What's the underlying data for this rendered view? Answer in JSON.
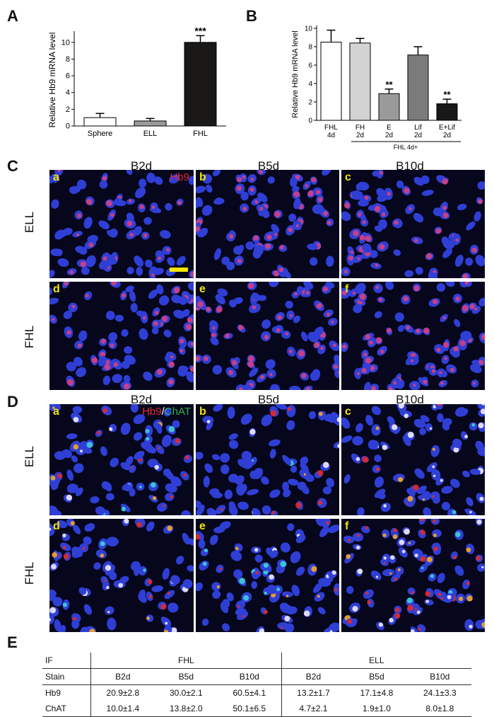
{
  "panels": {
    "A": "A",
    "B": "B",
    "C": "C",
    "D": "D",
    "E": "E"
  },
  "chart_data": [
    {
      "type": "bar",
      "panel": "A",
      "categories": [
        "Sphere",
        "ELL",
        "FHL"
      ],
      "values": [
        1.0,
        0.6,
        10.0
      ],
      "errors": [
        0.5,
        0.3,
        0.8
      ],
      "ylabel": "Relative Hb9 mRNA level",
      "ylim": [
        0,
        11
      ],
      "yticks": [
        "0",
        "2",
        "4",
        "6",
        "8",
        "10"
      ],
      "colors": [
        "#ffffff",
        "#9a9a9a",
        "#1a1717"
      ],
      "significance": [
        "",
        "",
        "***"
      ]
    },
    {
      "type": "bar",
      "panel": "B",
      "categories": [
        "FHL\n4d",
        "FH\n2d",
        "E\n2d",
        "Lif\n2d",
        "E+Lif\n2d"
      ],
      "values": [
        8.5,
        8.4,
        2.9,
        7.1,
        1.8
      ],
      "errors": [
        1.3,
        0.5,
        0.5,
        0.9,
        0.5
      ],
      "ylabel": "Relative Hb9 mRNA level",
      "ylim": [
        0,
        10
      ],
      "yticks": [
        "0",
        "2",
        "4",
        "6",
        "8",
        "10"
      ],
      "colors": [
        "#ffffff",
        "#d3d3d3",
        "#9a9a9a",
        "#7b7b7b",
        "#1a1717"
      ],
      "significance": [
        "",
        "",
        "**",
        "",
        "**"
      ],
      "group_label": "FHL 4d+"
    }
  ],
  "images": {
    "col_titles": [
      "B2d",
      "B5d",
      "B10d"
    ],
    "rows": [
      "ELL",
      "FHL"
    ],
    "C_stain": "Hb9",
    "D_stain_red": "Hb9",
    "D_stain_sep": "/",
    "D_stain_green": "ChAT",
    "C_sub": [
      "a",
      "b",
      "c",
      "d",
      "e",
      "f"
    ],
    "D_sub": [
      "a",
      "b",
      "c",
      "d",
      "e",
      "f"
    ]
  },
  "table": {
    "if_label": "IF",
    "stain_label": "Stain",
    "group1": "FHL",
    "group2": "ELL",
    "days": [
      "B2d",
      "B5d",
      "B10d",
      "B2d",
      "B5d",
      "B10d"
    ],
    "rows": [
      {
        "name": "Hb9",
        "values": [
          "20.9±2.8",
          "30.0±2.1",
          "60.5±4.1",
          "13.2±1.7",
          "17.1±4.8",
          "24.1±3.3"
        ]
      },
      {
        "name": "ChAT",
        "values": [
          "10.0±1.4",
          "13.8±2.0",
          "50.1±6.5",
          "4.7±2.1",
          "1.9±1.0",
          "8.0±1.8"
        ]
      }
    ]
  }
}
